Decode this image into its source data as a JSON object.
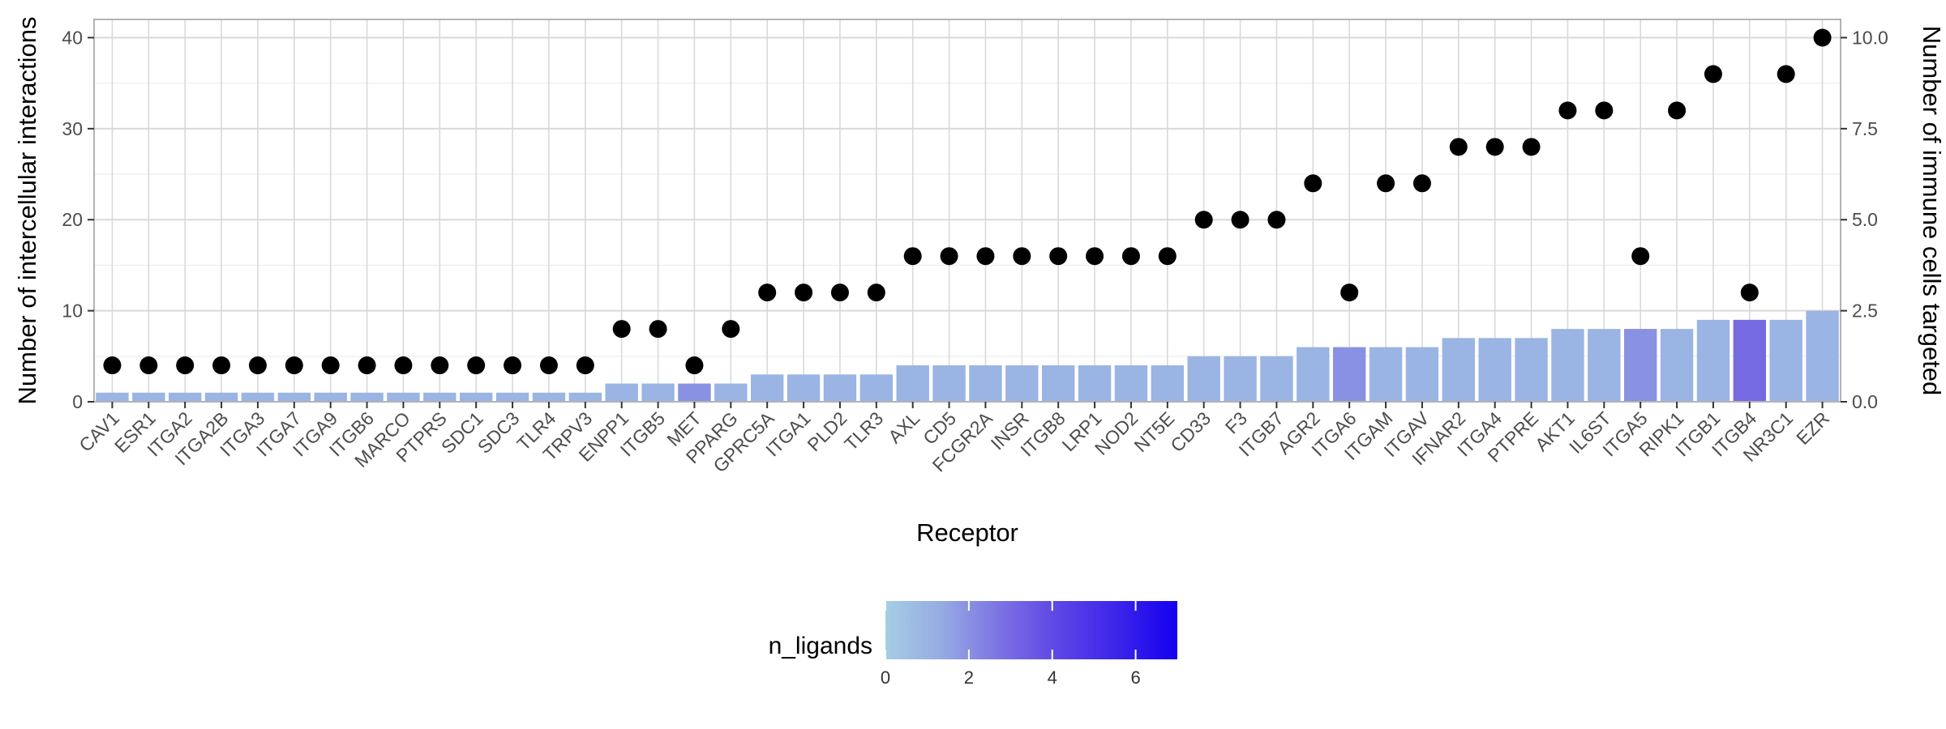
{
  "chart_data": {
    "type": "bar",
    "title": "",
    "xlabel": "Receptor",
    "ylabel": "Number of intercellular interactions",
    "y2label": "Number of immune cells targeted",
    "ylim": [
      0,
      42
    ],
    "y2lim": [
      0,
      10.5
    ],
    "y_ticks": [
      "0",
      "10",
      "20",
      "30",
      "40"
    ],
    "y2_ticks": [
      "0.0",
      "2.5",
      "5.0",
      "7.5",
      "10.0"
    ],
    "y_tick_values": [
      0,
      10,
      20,
      30,
      40
    ],
    "y2_tick_values": [
      0,
      2.5,
      5,
      7.5,
      10
    ],
    "grid": true,
    "categories": [
      "CAV1",
      "ESR1",
      "ITGA2",
      "ITGA2B",
      "ITGA3",
      "ITGA7",
      "ITGA9",
      "ITGB6",
      "MARCO",
      "PTPRS",
      "SDC1",
      "SDC3",
      "TLR4",
      "TRPV3",
      "ENPP1",
      "ITGB5",
      "MET",
      "PPARG",
      "GPRC5A",
      "ITGA1",
      "PLD2",
      "TLR3",
      "AXL",
      "CD5",
      "FCGR2A",
      "INSR",
      "ITGB8",
      "LRP1",
      "NOD2",
      "NT5E",
      "CD33",
      "F3",
      "ITGB7",
      "AGR2",
      "ITGA6",
      "ITGAM",
      "ITGAV",
      "IFNAR2",
      "ITGA4",
      "PTPRE",
      "AKT1",
      "IL6ST",
      "ITGA5",
      "RIPK1",
      "ITGB1",
      "ITGB4",
      "NR3C1",
      "EZR"
    ],
    "series": [
      {
        "kind": "bar",
        "axis": "left",
        "values": [
          1,
          1,
          1,
          1,
          1,
          1,
          1,
          1,
          1,
          1,
          1,
          1,
          1,
          1,
          2,
          2,
          2,
          2,
          3,
          3,
          3,
          3,
          4,
          4,
          4,
          4,
          4,
          4,
          4,
          4,
          5,
          5,
          5,
          6,
          6,
          6,
          6,
          7,
          7,
          7,
          8,
          8,
          8,
          8,
          9,
          9,
          9,
          10
        ]
      },
      {
        "kind": "point",
        "axis": "right",
        "values": [
          1,
          1,
          1,
          1,
          1,
          1,
          1,
          1,
          1,
          1,
          1,
          1,
          1,
          1,
          2,
          2,
          1,
          2,
          3,
          3,
          3,
          3,
          4,
          4,
          4,
          4,
          4,
          4,
          4,
          4,
          5,
          5,
          5,
          6,
          3,
          6,
          6,
          7,
          7,
          7,
          8,
          8,
          4,
          8,
          9,
          3,
          9,
          10
        ]
      }
    ],
    "fill_ligands": [
      1,
      1,
      1,
      1,
      1,
      1,
      1,
      1,
      1,
      1,
      1,
      1,
      1,
      1,
      1,
      1,
      2,
      1,
      1,
      1,
      1,
      1,
      1,
      1,
      1,
      1,
      1,
      1,
      1,
      1,
      1,
      1,
      1,
      1,
      2,
      1,
      1,
      1,
      1,
      1,
      1,
      1,
      2,
      1,
      1,
      3,
      1,
      1
    ],
    "legend": {
      "title": "n_ligands",
      "position": "bottom",
      "range": [
        0,
        7
      ],
      "ticks": [
        "0",
        "2",
        "4",
        "6"
      ],
      "tick_values": [
        0,
        2,
        4,
        6
      ],
      "gradient": [
        "#a6cee3",
        "#1400ee"
      ],
      "colors": [
        "#a6cee3",
        "#95a9e3",
        "#7a70e3",
        "#5b44e6",
        "#3a24ea",
        "#1400ee"
      ]
    },
    "colors": {
      "point": "#000000",
      "grid_major": "#d9d9d9",
      "grid_minor": "#ebebeb",
      "panel_border": "#b3b3b3"
    }
  }
}
